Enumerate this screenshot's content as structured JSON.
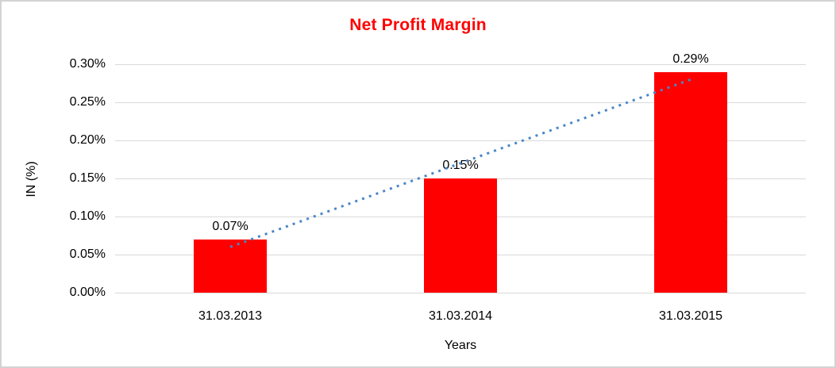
{
  "chart_data": {
    "type": "bar",
    "title": "Net Profit Margin",
    "categories": [
      "31.03.2013",
      "31.03.2014",
      "31.03.2015"
    ],
    "values": [
      0.07,
      0.15,
      0.29
    ],
    "value_labels": [
      "0.07%",
      "0.15%",
      "0.29%"
    ],
    "xlabel": "Years",
    "ylabel": "IN (%)",
    "ylim": [
      0,
      0.3
    ],
    "ytick_step": 0.05,
    "ytick_labels": [
      "0.00%",
      "0.05%",
      "0.10%",
      "0.15%",
      "0.20%",
      "0.25%",
      "0.30%"
    ],
    "grid": true,
    "legend": "none",
    "colors": {
      "bar": "#ff0000",
      "title": "#ff0000",
      "gridline": "#d9d9d9",
      "text": "#000000",
      "trendline": "#4a86c8",
      "frame_border": "#d3d3d3"
    },
    "trendline": {
      "type": "linear",
      "style": "dotted",
      "color": "#4a86c8",
      "span": "first-bar-center-to-last-bar-center"
    }
  }
}
